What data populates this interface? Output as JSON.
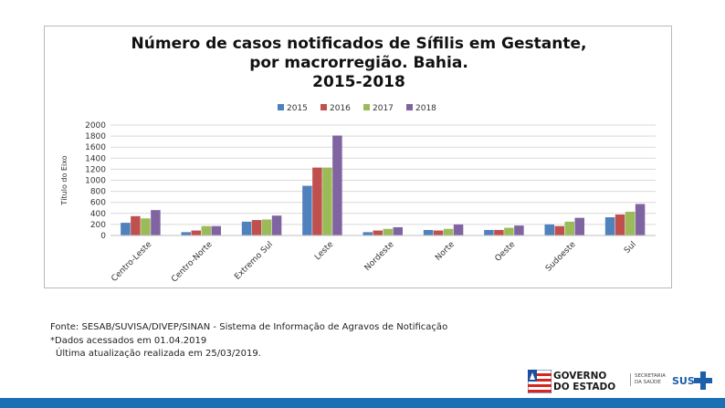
{
  "chart_data": {
    "type": "bar",
    "title_lines": [
      "Número de casos notificados de Sífilis em Gestante,",
      "por macrorregião. Bahia.",
      "2015-2018"
    ],
    "ylabel": "Título do Eixo",
    "xlabel": "",
    "ylim": [
      0,
      2000
    ],
    "yticks": [
      "0",
      "200",
      "400",
      "600",
      "800",
      "1000",
      "1200",
      "1400",
      "1600",
      "1800",
      "2000"
    ],
    "grid": true,
    "legend_position": "top",
    "categories": [
      "Centro-Leste",
      "Centro-Norte",
      "Extremo Sul",
      "Leste",
      "Nordeste",
      "Norte",
      "Oeste",
      "Sudoeste",
      "Sul"
    ],
    "series": [
      {
        "name": "2015",
        "color": "#4f81bd",
        "values": [
          230,
          60,
          250,
          900,
          60,
          100,
          100,
          200,
          330
        ]
      },
      {
        "name": "2016",
        "color": "#c0504d",
        "values": [
          350,
          90,
          280,
          1230,
          90,
          90,
          100,
          170,
          380
        ]
      },
      {
        "name": "2017",
        "color": "#9bbb59",
        "values": [
          310,
          170,
          290,
          1230,
          120,
          120,
          140,
          250,
          430
        ]
      },
      {
        "name": "2018",
        "color": "#8064a2",
        "values": [
          460,
          170,
          360,
          1810,
          150,
          200,
          180,
          320,
          570
        ]
      }
    ]
  },
  "source": {
    "line1": "Fonte: SESAB/SUVISA/DIVEP/SINAN - Sistema de Informação de Agravos de Notificação",
    "line2": "*Dados acessados em 01.04.2019",
    "line3": "Última atualização realizada em 25/03/2019."
  },
  "footer": {
    "gov_logo_line1": "GOVERNO",
    "gov_logo_line2": "DO ESTADO",
    "secretaria_line1": "SECRETARIA",
    "secretaria_line2": "DA SAÚDE",
    "sus_logo": "SUS",
    "bar_color": "#1b6fb5"
  }
}
